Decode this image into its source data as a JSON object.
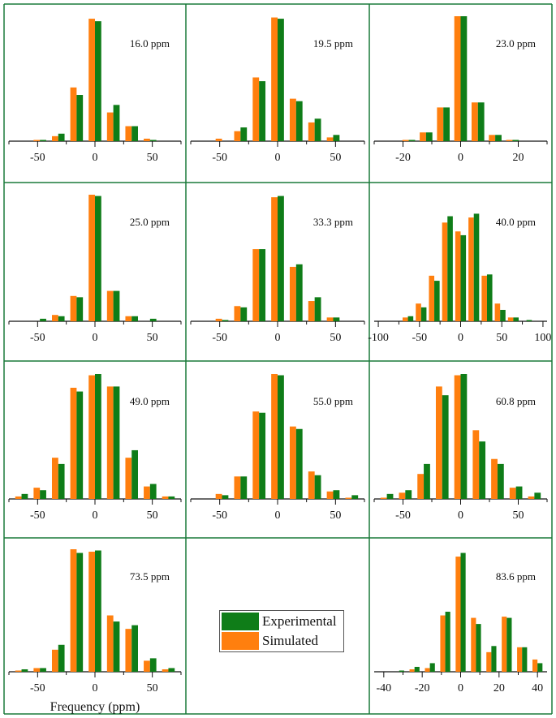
{
  "colors": {
    "experimental": "#0f7d18",
    "simulated": "#ff7f0e",
    "frame": "#1a7a3a",
    "axis": "#111111"
  },
  "legend": {
    "experimental": "Experimental",
    "simulated": "Simulated"
  },
  "xlabel": "Frequency (ppm)",
  "chart_data": [
    {
      "type": "bar",
      "title": "16.0 ppm",
      "xlim": [
        -75,
        75
      ],
      "ylim": [
        0,
        1.0
      ],
      "bar_width": 5.5,
      "ticks": [
        -50,
        0,
        50
      ],
      "x": [
        -64,
        -48,
        -32,
        -16,
        0,
        16,
        32,
        48,
        64
      ],
      "series": [
        {
          "name": "Simulated",
          "values": [
            0.0,
            0.01,
            0.04,
            0.43,
            0.98,
            0.23,
            0.12,
            0.02,
            0.0
          ]
        },
        {
          "name": "Experimental",
          "values": [
            0.0,
            0.01,
            0.06,
            0.37,
            0.96,
            0.29,
            0.12,
            0.01,
            0.0
          ]
        }
      ]
    },
    {
      "type": "bar",
      "title": "19.5 ppm",
      "xlim": [
        -75,
        75
      ],
      "ylim": [
        0,
        1.0
      ],
      "bar_width": 5.5,
      "ticks": [
        -50,
        0,
        50
      ],
      "x": [
        -64,
        -48,
        -32,
        -16,
        0,
        16,
        32,
        48,
        64
      ],
      "series": [
        {
          "name": "Simulated",
          "values": [
            0.0,
            0.02,
            0.08,
            0.51,
            0.99,
            0.34,
            0.15,
            0.03,
            0.0
          ]
        },
        {
          "name": "Experimental",
          "values": [
            0.0,
            0.0,
            0.11,
            0.48,
            0.98,
            0.32,
            0.18,
            0.05,
            0.0
          ]
        }
      ]
    },
    {
      "type": "bar",
      "title": "23.0 ppm",
      "xlim": [
        -30,
        30
      ],
      "ylim": [
        0,
        1.0
      ],
      "bar_width": 2.2,
      "ticks": [
        -20,
        0,
        20
      ],
      "x": [
        -24,
        -18,
        -12,
        -6,
        0,
        6,
        12,
        18,
        24
      ],
      "series": [
        {
          "name": "Simulated",
          "values": [
            0.0,
            0.01,
            0.07,
            0.27,
            1.0,
            0.31,
            0.05,
            0.01,
            0.0
          ]
        },
        {
          "name": "Experimental",
          "values": [
            0.0,
            0.01,
            0.07,
            0.27,
            1.0,
            0.31,
            0.05,
            0.01,
            0.0
          ]
        }
      ]
    },
    {
      "type": "bar",
      "title": "25.0 ppm",
      "xlim": [
        -75,
        75
      ],
      "ylim": [
        0,
        1.0
      ],
      "bar_width": 5.5,
      "ticks": [
        -50,
        0,
        50
      ],
      "x": [
        -64,
        -48,
        -32,
        -16,
        0,
        16,
        32,
        48,
        64
      ],
      "series": [
        {
          "name": "Simulated",
          "values": [
            0.0,
            0.0,
            0.05,
            0.2,
            1.0,
            0.24,
            0.04,
            0.0,
            0.0
          ]
        },
        {
          "name": "Experimental",
          "values": [
            0.0,
            0.02,
            0.04,
            0.19,
            0.99,
            0.24,
            0.04,
            0.02,
            0.0
          ]
        }
      ]
    },
    {
      "type": "bar",
      "title": "33.3 ppm",
      "xlim": [
        -75,
        75
      ],
      "ylim": [
        0,
        1.0
      ],
      "bar_width": 5.5,
      "ticks": [
        -50,
        0,
        50
      ],
      "x": [
        -64,
        -48,
        -32,
        -16,
        0,
        16,
        32,
        48,
        64
      ],
      "series": [
        {
          "name": "Simulated",
          "values": [
            0.0,
            0.02,
            0.12,
            0.57,
            0.98,
            0.43,
            0.16,
            0.03,
            0.0
          ]
        },
        {
          "name": "Experimental",
          "values": [
            0.0,
            0.01,
            0.11,
            0.57,
            0.99,
            0.45,
            0.19,
            0.03,
            0.0
          ]
        }
      ]
    },
    {
      "type": "bar",
      "title": "40.0 ppm",
      "xlim": [
        -105,
        105
      ],
      "ylim": [
        0,
        1.0
      ],
      "bar_width": 6.5,
      "ticks": [
        -100,
        -50,
        0,
        50,
        100
      ],
      "x": [
        -80,
        -64,
        -48,
        -32,
        -16,
        0,
        16,
        32,
        48,
        64,
        80
      ],
      "series": [
        {
          "name": "Simulated",
          "values": [
            0.0,
            0.03,
            0.14,
            0.36,
            0.78,
            0.71,
            0.82,
            0.36,
            0.14,
            0.03,
            0.0
          ]
        },
        {
          "name": "Experimental",
          "values": [
            0.0,
            0.04,
            0.11,
            0.32,
            0.83,
            0.68,
            0.85,
            0.37,
            0.09,
            0.03,
            0.01
          ]
        }
      ]
    },
    {
      "type": "bar",
      "title": "49.0 ppm",
      "xlim": [
        -75,
        75
      ],
      "ylim": [
        0,
        1.0
      ],
      "bar_width": 5.5,
      "ticks": [
        -50,
        0,
        50
      ],
      "x": [
        -64,
        -48,
        -32,
        -16,
        0,
        16,
        32,
        48,
        64
      ],
      "series": [
        {
          "name": "Simulated",
          "values": [
            0.02,
            0.09,
            0.33,
            0.89,
            0.99,
            0.9,
            0.33,
            0.1,
            0.02
          ]
        },
        {
          "name": "Experimental",
          "values": [
            0.04,
            0.07,
            0.28,
            0.86,
            1.0,
            0.9,
            0.39,
            0.12,
            0.02
          ]
        }
      ]
    },
    {
      "type": "bar",
      "title": "55.0 ppm",
      "xlim": [
        -75,
        75
      ],
      "ylim": [
        0,
        1.0
      ],
      "bar_width": 5.5,
      "ticks": [
        -50,
        0,
        50
      ],
      "x": [
        -64,
        -48,
        -32,
        -16,
        0,
        16,
        32,
        48,
        64
      ],
      "series": [
        {
          "name": "Simulated",
          "values": [
            0.0,
            0.04,
            0.18,
            0.7,
            1.0,
            0.58,
            0.22,
            0.06,
            0.01
          ]
        },
        {
          "name": "Experimental",
          "values": [
            0.0,
            0.03,
            0.18,
            0.69,
            0.99,
            0.56,
            0.19,
            0.07,
            0.03
          ]
        }
      ]
    },
    {
      "type": "bar",
      "title": "60.8 ppm",
      "xlim": [
        -75,
        75
      ],
      "ylim": [
        0,
        1.0
      ],
      "bar_width": 5.5,
      "ticks": [
        -50,
        0,
        50
      ],
      "x": [
        -64,
        -48,
        -32,
        -16,
        0,
        16,
        32,
        48,
        64
      ],
      "series": [
        {
          "name": "Simulated",
          "values": [
            0.01,
            0.05,
            0.2,
            0.9,
            0.99,
            0.55,
            0.32,
            0.09,
            0.02
          ]
        },
        {
          "name": "Experimental",
          "values": [
            0.04,
            0.07,
            0.28,
            0.83,
            1.0,
            0.46,
            0.28,
            0.1,
            0.05
          ]
        }
      ]
    },
    {
      "type": "bar",
      "title": "73.5 ppm",
      "xlim": [
        -75,
        75
      ],
      "ylim": [
        0,
        1.0
      ],
      "bar_width": 5.5,
      "ticks": [
        -50,
        0,
        50
      ],
      "x": [
        -64,
        -48,
        -32,
        -16,
        0,
        16,
        32,
        48,
        64
      ],
      "series": [
        {
          "name": "Simulated",
          "values": [
            0.01,
            0.03,
            0.18,
            1.0,
            0.98,
            0.46,
            0.35,
            0.09,
            0.02
          ]
        },
        {
          "name": "Experimental",
          "values": [
            0.02,
            0.03,
            0.22,
            0.97,
            0.99,
            0.41,
            0.38,
            0.11,
            0.03
          ]
        }
      ]
    },
    {
      "type": "bar",
      "title": "83.6 ppm",
      "xlim": [
        -45,
        45
      ],
      "ylim": [
        0,
        1.0
      ],
      "bar_width": 2.6,
      "ticks": [
        -40,
        -20,
        0,
        20,
        40
      ],
      "x": [
        -40,
        -32,
        -24,
        -16,
        -8,
        0,
        8,
        16,
        24,
        32,
        40
      ],
      "series": [
        {
          "name": "Simulated",
          "values": [
            0.0,
            0.0,
            0.02,
            0.03,
            0.46,
            0.94,
            0.44,
            0.16,
            0.45,
            0.2,
            0.1
          ]
        },
        {
          "name": "Experimental",
          "values": [
            0.0,
            0.01,
            0.04,
            0.07,
            0.49,
            0.97,
            0.39,
            0.21,
            0.44,
            0.2,
            0.07
          ]
        }
      ]
    }
  ]
}
